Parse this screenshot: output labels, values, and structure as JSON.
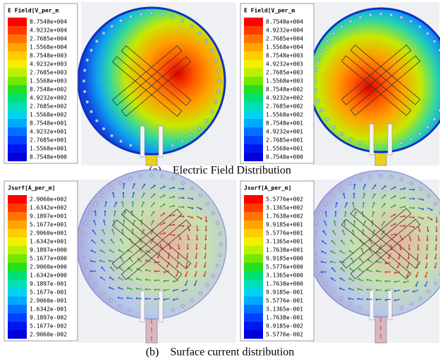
{
  "panels": [
    {
      "legend_title": "E Field[V_per_m",
      "legend_labels": [
        "8.7548e+004",
        "4.9232e+004",
        "2.7685e+004",
        "1.5568e+004",
        "8.7548e+003",
        "4.9232e+003",
        "2.7685e+003",
        "1.5568e+003",
        "8.7548e+002",
        "4.9232e+002",
        "2.7685e+002",
        "1.5568e+002",
        "8.7548e+001",
        "4.9232e+001",
        "2.7685e+001",
        "1.5568e+001",
        "8.7548e+000"
      ]
    },
    {
      "legend_title": "E Field[V_per_m",
      "legend_labels": [
        "8.7548e+004",
        "4.9232e+004",
        "2.7685e+004",
        "1.5568e+004",
        "8.7548e+003",
        "4.9232e+003",
        "2.7685e+003",
        "1.5568e+003",
        "8.7548e+002",
        "4.9232e+002",
        "2.7685e+002",
        "1.5568e+002",
        "8.7548e+001",
        "4.9232e+001",
        "2.7685e+001",
        "1.5568e+001",
        "8.7548e+000"
      ]
    },
    {
      "legend_title": "Jsurf[A_per_m]",
      "legend_labels": [
        "2.9060e+002",
        "1.6342e+002",
        "9.1897e+001",
        "5.1677e+001",
        "2.9060e+001",
        "1.6342e+001",
        "9.1897e+000",
        "5.1677e+000",
        "2.9060e+000",
        "1.6342e+000",
        "9.1897e-001",
        "5.1677e-001",
        "2.9060e-001",
        "1.6342e-001",
        "9.1897e-002",
        "5.1677e-002",
        "2.9060e-002"
      ]
    },
    {
      "legend_title": "Jsurf[A_per_m]",
      "legend_labels": [
        "5.5776e+002",
        "3.1365e+002",
        "1.7638e+002",
        "9.9185e+001",
        "5.5776e+001",
        "3.1365e+001",
        "1.7638e+001",
        "9.9185e+000",
        "5.5776e+000",
        "3.1365e+000",
        "1.7638e+000",
        "9.9185e-001",
        "5.5776e-001",
        "3.1365e-001",
        "1.7638e-001",
        "9.9185e-002",
        "5.5776e-002"
      ]
    }
  ],
  "captions": [
    "(a)    Electric Field Distribution",
    "(b)    Surface current distribution"
  ]
}
